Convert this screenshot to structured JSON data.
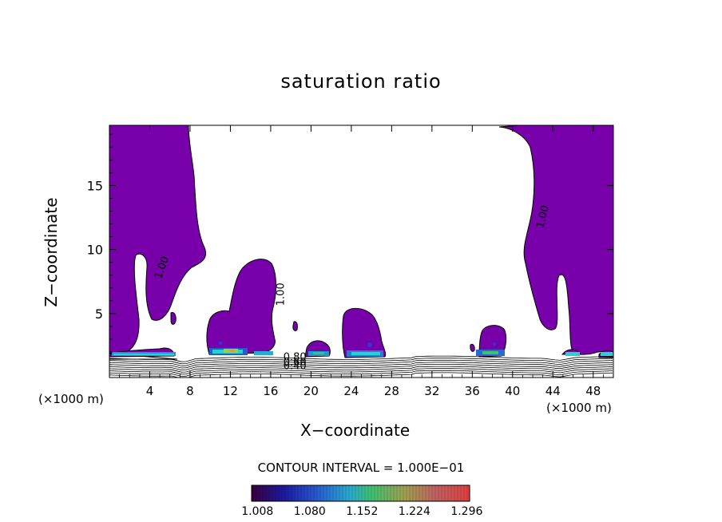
{
  "chart_data": {
    "type": "contour",
    "title": "saturation ratio",
    "xlabel": "X−coordinate",
    "ylabel": "Z−coordinate",
    "x_unit_left": "(×1000 m)",
    "x_unit_right": "(×1000 m)",
    "xlim": [
      0,
      50
    ],
    "ylim": [
      0,
      19.7
    ],
    "x_ticks": [
      4,
      8,
      12,
      16,
      20,
      24,
      28,
      32,
      36,
      40,
      44,
      48
    ],
    "y_ticks": [
      5,
      10,
      15
    ],
    "fill_color": "#7700aa",
    "contour_labels": [
      {
        "text": "1.00",
        "x": 5.5,
        "z": 8.5,
        "angle": -70
      },
      {
        "text": "1.00",
        "x": 17.3,
        "z": 6.5,
        "angle": -90
      },
      {
        "text": "1.00",
        "x": 43.3,
        "z": 12.5,
        "angle": -75
      },
      {
        "text": "0.80",
        "x": 18.4,
        "z": 1.35,
        "angle": 0
      },
      {
        "text": "0.60",
        "x": 18.4,
        "z": 0.95,
        "angle": 0
      },
      {
        "text": "0.40",
        "x": 18.4,
        "z": 0.65,
        "angle": 0
      }
    ],
    "contour_interval_text": "CONTOUR INTERVAL = 1.000E−01",
    "colorbar": {
      "tick_labels": [
        "1.008",
        "1.080",
        "1.152",
        "1.224",
        "1.296"
      ],
      "tick_values": [
        1.008,
        1.08,
        1.152,
        1.224,
        1.296
      ],
      "range": [
        1.0,
        1.3
      ]
    }
  }
}
